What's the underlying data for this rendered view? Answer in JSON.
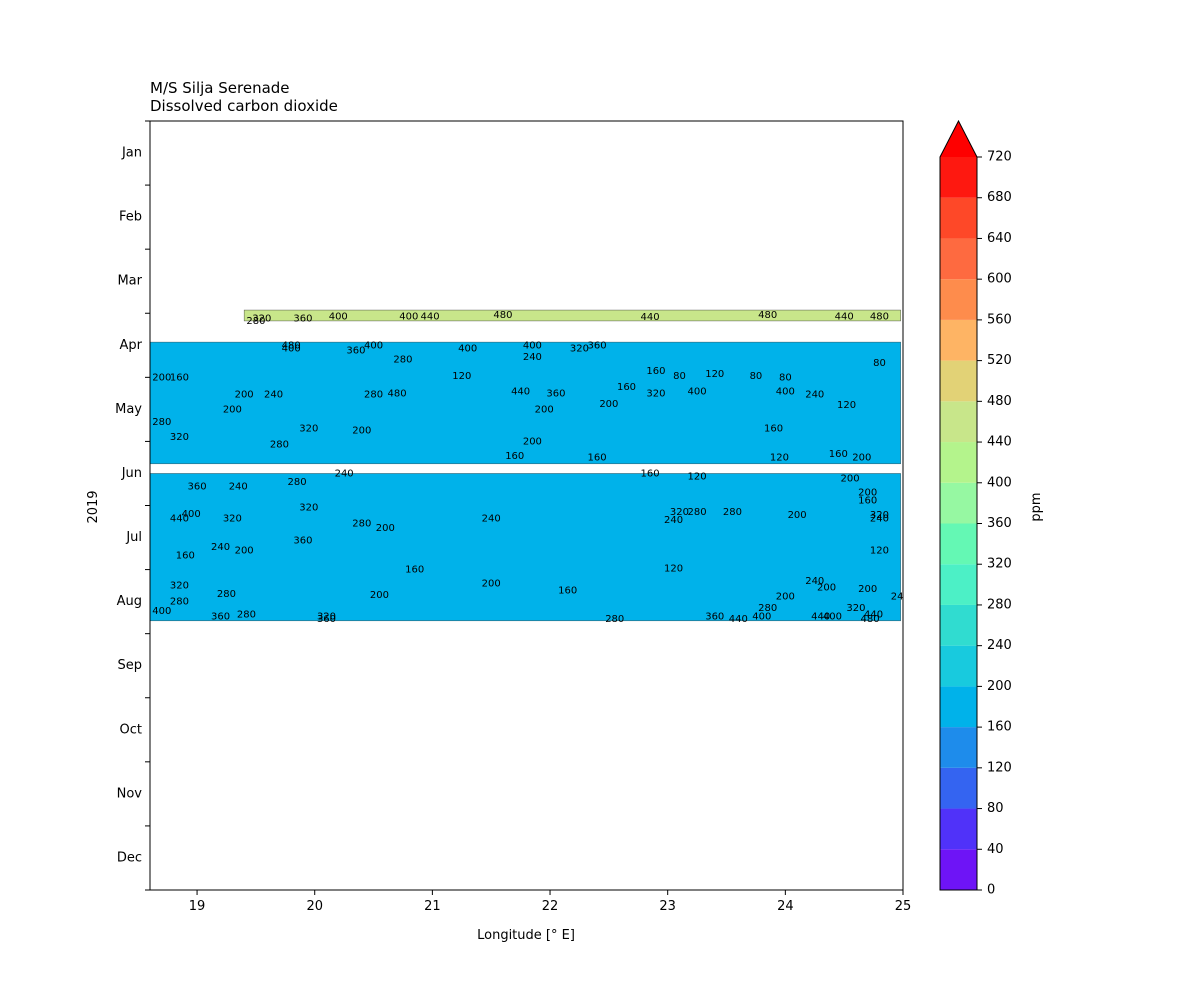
{
  "chart_data": {
    "type": "heatmap",
    "title": "M/S Silja Serenade",
    "subtitle": "Dissolved carbon dioxide",
    "xlabel": "Longitude [° E]",
    "ylabel": "2019",
    "xlim": [
      18.6,
      25.0
    ],
    "x_ticks": [
      19,
      20,
      21,
      22,
      23,
      24,
      25
    ],
    "y_tick_labels": [
      "Jan",
      "Feb",
      "Mar",
      "Apr",
      "May",
      "Jun",
      "Jul",
      "Aug",
      "Sep",
      "Oct",
      "Nov",
      "Dec"
    ],
    "y_range_months": [
      0.5,
      12.5
    ],
    "colorbar": {
      "label": "ppm",
      "levels": [
        0,
        40,
        80,
        120,
        160,
        200,
        240,
        280,
        320,
        360,
        400,
        440,
        480,
        520,
        560,
        600,
        640,
        680,
        720
      ],
      "colors": [
        "#6e14f6",
        "#5032f9",
        "#3464f1",
        "#1e8ceb",
        "#00b2ea",
        "#18cade",
        "#30dcd0",
        "#4cf0c6",
        "#64f8b4",
        "#96f8a2",
        "#b4f48c",
        "#c8e68a",
        "#e2d276",
        "#feb464",
        "#fe8c4c",
        "#fe6a40",
        "#fe4828",
        "#fe1810"
      ],
      "extend": "max",
      "extend_color": "#fe0000"
    },
    "data_bands": [
      {
        "month_start": 3.45,
        "month_end": 3.62,
        "lon_start": 19.4,
        "lon_end": 24.98,
        "level_dominant": 460
      },
      {
        "month_start": 3.95,
        "month_end": 5.85,
        "lon_start": 18.6,
        "lon_end": 24.98,
        "level_dominant": 180
      },
      {
        "month_start": 6.0,
        "month_end": 8.3,
        "lon_start": 18.6,
        "lon_end": 24.98,
        "level_dominant": 180
      }
    ],
    "contour_labels": [
      {
        "lon": 19.55,
        "month": 3.58,
        "text": "320"
      },
      {
        "lon": 19.5,
        "month": 3.62,
        "text": "280"
      },
      {
        "lon": 19.9,
        "month": 3.58,
        "text": "360"
      },
      {
        "lon": 20.2,
        "month": 3.55,
        "text": "400"
      },
      {
        "lon": 20.8,
        "month": 3.55,
        "text": "400"
      },
      {
        "lon": 20.98,
        "month": 3.55,
        "text": "440"
      },
      {
        "lon": 21.6,
        "month": 3.53,
        "text": "480"
      },
      {
        "lon": 22.85,
        "month": 3.56,
        "text": "440"
      },
      {
        "lon": 23.85,
        "month": 3.53,
        "text": "480"
      },
      {
        "lon": 24.5,
        "month": 3.55,
        "text": "440"
      },
      {
        "lon": 24.8,
        "month": 3.55,
        "text": "480"
      },
      {
        "lon": 19.8,
        "month": 4.0,
        "text": "480"
      },
      {
        "lon": 19.8,
        "month": 4.05,
        "text": "400"
      },
      {
        "lon": 20.35,
        "month": 4.08,
        "text": "360"
      },
      {
        "lon": 20.5,
        "month": 4.0,
        "text": "400"
      },
      {
        "lon": 20.75,
        "month": 4.22,
        "text": "280"
      },
      {
        "lon": 21.3,
        "month": 4.05,
        "text": "400"
      },
      {
        "lon": 21.85,
        "month": 4.0,
        "text": "400"
      },
      {
        "lon": 22.25,
        "month": 4.05,
        "text": "320"
      },
      {
        "lon": 22.4,
        "month": 4.0,
        "text": "360"
      },
      {
        "lon": 21.85,
        "month": 4.18,
        "text": "240"
      },
      {
        "lon": 21.25,
        "month": 4.48,
        "text": "120"
      },
      {
        "lon": 22.9,
        "month": 4.4,
        "text": "160"
      },
      {
        "lon": 23.1,
        "month": 4.48,
        "text": "80"
      },
      {
        "lon": 23.4,
        "month": 4.45,
        "text": "120"
      },
      {
        "lon": 23.75,
        "month": 4.48,
        "text": "80"
      },
      {
        "lon": 24.0,
        "month": 4.5,
        "text": "80"
      },
      {
        "lon": 24.8,
        "month": 4.28,
        "text": "80"
      },
      {
        "lon": 22.65,
        "month": 4.65,
        "text": "160"
      },
      {
        "lon": 18.7,
        "month": 4.5,
        "text": "200"
      },
      {
        "lon": 18.85,
        "month": 4.5,
        "text": "160"
      },
      {
        "lon": 19.4,
        "month": 4.77,
        "text": "200"
      },
      {
        "lon": 19.65,
        "month": 4.77,
        "text": "240"
      },
      {
        "lon": 20.5,
        "month": 4.77,
        "text": "280"
      },
      {
        "lon": 20.7,
        "month": 4.75,
        "text": "480"
      },
      {
        "lon": 21.75,
        "month": 4.72,
        "text": "440"
      },
      {
        "lon": 22.05,
        "month": 4.75,
        "text": "360"
      },
      {
        "lon": 22.9,
        "month": 4.75,
        "text": "320"
      },
      {
        "lon": 23.25,
        "month": 4.72,
        "text": "400"
      },
      {
        "lon": 24.0,
        "month": 4.72,
        "text": "400"
      },
      {
        "lon": 24.25,
        "month": 4.77,
        "text": "240"
      },
      {
        "lon": 24.52,
        "month": 4.93,
        "text": "120"
      },
      {
        "lon": 19.3,
        "month": 5.0,
        "text": "200"
      },
      {
        "lon": 21.95,
        "month": 5.0,
        "text": "200"
      },
      {
        "lon": 22.5,
        "month": 4.92,
        "text": "200"
      },
      {
        "lon": 18.7,
        "month": 5.2,
        "text": "280"
      },
      {
        "lon": 19.95,
        "month": 5.3,
        "text": "320"
      },
      {
        "lon": 20.4,
        "month": 5.33,
        "text": "200"
      },
      {
        "lon": 23.9,
        "month": 5.3,
        "text": "160"
      },
      {
        "lon": 18.85,
        "month": 5.43,
        "text": "320"
      },
      {
        "lon": 19.7,
        "month": 5.55,
        "text": "280"
      },
      {
        "lon": 21.85,
        "month": 5.5,
        "text": "200"
      },
      {
        "lon": 21.7,
        "month": 5.73,
        "text": "160"
      },
      {
        "lon": 22.4,
        "month": 5.75,
        "text": "160"
      },
      {
        "lon": 23.95,
        "month": 5.75,
        "text": "120"
      },
      {
        "lon": 24.45,
        "month": 5.7,
        "text": "160"
      },
      {
        "lon": 24.65,
        "month": 5.75,
        "text": "200"
      },
      {
        "lon": 20.25,
        "month": 6.0,
        "text": "240"
      },
      {
        "lon": 22.85,
        "month": 6.0,
        "text": "160"
      },
      {
        "lon": 23.25,
        "month": 6.05,
        "text": "120"
      },
      {
        "lon": 24.55,
        "month": 6.08,
        "text": "200"
      },
      {
        "lon": 19.0,
        "month": 6.2,
        "text": "360"
      },
      {
        "lon": 19.35,
        "month": 6.2,
        "text": "240"
      },
      {
        "lon": 19.85,
        "month": 6.13,
        "text": "280"
      },
      {
        "lon": 24.7,
        "month": 6.3,
        "text": "200"
      },
      {
        "lon": 24.7,
        "month": 6.42,
        "text": "160"
      },
      {
        "lon": 19.95,
        "month": 6.53,
        "text": "320"
      },
      {
        "lon": 18.95,
        "month": 6.63,
        "text": "400"
      },
      {
        "lon": 18.85,
        "month": 6.7,
        "text": "440"
      },
      {
        "lon": 19.3,
        "month": 6.7,
        "text": "320"
      },
      {
        "lon": 20.4,
        "month": 6.78,
        "text": "280"
      },
      {
        "lon": 20.6,
        "month": 6.85,
        "text": "200"
      },
      {
        "lon": 21.5,
        "month": 6.7,
        "text": "240"
      },
      {
        "lon": 23.1,
        "month": 6.6,
        "text": "320"
      },
      {
        "lon": 23.25,
        "month": 6.6,
        "text": "280"
      },
      {
        "lon": 23.05,
        "month": 6.73,
        "text": "240"
      },
      {
        "lon": 23.55,
        "month": 6.6,
        "text": "280"
      },
      {
        "lon": 24.1,
        "month": 6.65,
        "text": "200"
      },
      {
        "lon": 24.8,
        "month": 6.65,
        "text": "320"
      },
      {
        "lon": 24.8,
        "month": 6.7,
        "text": "240"
      },
      {
        "lon": 19.9,
        "month": 7.05,
        "text": "360"
      },
      {
        "lon": 19.2,
        "month": 7.15,
        "text": "240"
      },
      {
        "lon": 19.4,
        "month": 7.2,
        "text": "200"
      },
      {
        "lon": 18.9,
        "month": 7.28,
        "text": "160"
      },
      {
        "lon": 24.8,
        "month": 7.2,
        "text": "120"
      },
      {
        "lon": 20.85,
        "month": 7.5,
        "text": "160"
      },
      {
        "lon": 23.05,
        "month": 7.48,
        "text": "120"
      },
      {
        "lon": 18.85,
        "month": 7.75,
        "text": "320"
      },
      {
        "lon": 19.25,
        "month": 7.88,
        "text": "280"
      },
      {
        "lon": 21.5,
        "month": 7.72,
        "text": "200"
      },
      {
        "lon": 22.15,
        "month": 7.83,
        "text": "160"
      },
      {
        "lon": 24.25,
        "month": 7.68,
        "text": "240"
      },
      {
        "lon": 24.35,
        "month": 7.78,
        "text": "200"
      },
      {
        "lon": 24.7,
        "month": 7.8,
        "text": "200"
      },
      {
        "lon": 20.55,
        "month": 7.9,
        "text": "200"
      },
      {
        "lon": 24.0,
        "month": 7.92,
        "text": "200"
      },
      {
        "lon": 24.95,
        "month": 7.92,
        "text": "24"
      },
      {
        "lon": 18.85,
        "month": 8.0,
        "text": "280"
      },
      {
        "lon": 23.85,
        "month": 8.1,
        "text": "280"
      },
      {
        "lon": 24.6,
        "month": 8.1,
        "text": "320"
      },
      {
        "lon": 24.75,
        "month": 8.2,
        "text": "440"
      },
      {
        "lon": 18.7,
        "month": 8.15,
        "text": "400"
      },
      {
        "lon": 19.2,
        "month": 8.23,
        "text": "360"
      },
      {
        "lon": 19.42,
        "month": 8.2,
        "text": "280"
      },
      {
        "lon": 20.1,
        "month": 8.23,
        "text": "320"
      },
      {
        "lon": 20.1,
        "month": 8.27,
        "text": "360"
      },
      {
        "lon": 22.55,
        "month": 8.27,
        "text": "280"
      },
      {
        "lon": 23.4,
        "month": 8.23,
        "text": "360"
      },
      {
        "lon": 23.6,
        "month": 8.27,
        "text": "440"
      },
      {
        "lon": 23.8,
        "month": 8.23,
        "text": "400"
      },
      {
        "lon": 24.3,
        "month": 8.23,
        "text": "440"
      },
      {
        "lon": 24.4,
        "month": 8.23,
        "text": "400"
      },
      {
        "lon": 24.72,
        "month": 8.27,
        "text": "480"
      }
    ]
  }
}
